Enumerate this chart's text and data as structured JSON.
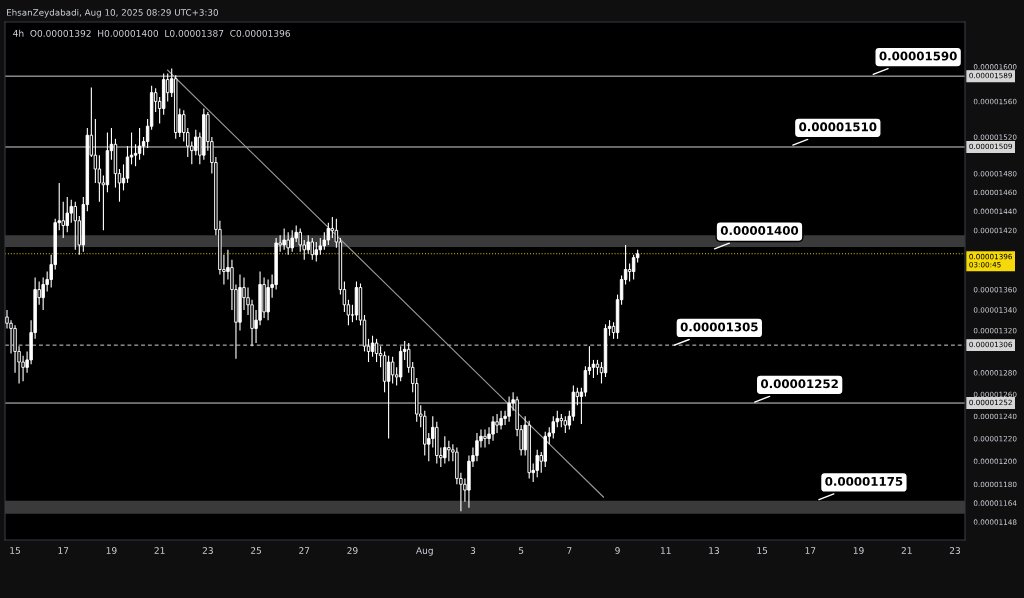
{
  "chart_data": {
    "type": "candlestick",
    "title": "4h  O0.00001392  H0.00001400  L0.00001387  C0.00001396",
    "annotations": [
      "EhsanZeydabadi, Aug 10, 2025 08:29 UTC+3:30",
      {
        "text": "0.00001590",
        "x": "2025-08-19T12:00",
        "y": 1.59e-05
      },
      {
        "text": "0.00001510",
        "x": "2025-08-16T04:00",
        "y": 1.51e-05
      },
      {
        "text": "0.00001400",
        "x": "2025-08-12T22:00",
        "y": 1.4e-05
      },
      {
        "text": "0.00001305",
        "x": "2025-08-11T06:00",
        "y": 1.305e-05
      },
      {
        "text": "0.00001252",
        "x": "2025-08-14T14:00",
        "y": 1.252e-05
      },
      {
        "text": "0.00001175",
        "x": "2025-08-17T06:00",
        "y": 1.166e-05
      }
    ],
    "log": true,
    "xlim": [
      "2025-07-14T14:00",
      "2025-08-23T10:00"
    ],
    "xticks": [
      {
        "value": "2025-07-15",
        "label": "15"
      },
      {
        "value": "2025-07-17",
        "label": "17"
      },
      {
        "value": "2025-07-19",
        "label": "19"
      },
      {
        "value": "2025-07-21",
        "label": "21"
      },
      {
        "value": "2025-07-23",
        "label": "23"
      },
      {
        "value": "2025-07-25",
        "label": "25"
      },
      {
        "value": "2025-07-27",
        "label": "27"
      },
      {
        "value": "2025-07-29",
        "label": "29"
      },
      {
        "value": "2025-08-01",
        "label": "Aug"
      },
      {
        "value": "2025-08-03",
        "label": "3"
      },
      {
        "value": "2025-08-05",
        "label": "5"
      },
      {
        "value": "2025-08-07",
        "label": "7"
      },
      {
        "value": "2025-08-09",
        "label": "9"
      },
      {
        "value": "2025-08-11",
        "label": "11"
      },
      {
        "value": "2025-08-13",
        "label": "13"
      },
      {
        "value": "2025-08-15",
        "label": "15"
      },
      {
        "value": "2025-08-17",
        "label": "17"
      },
      {
        "value": "2025-08-19",
        "label": "19"
      },
      {
        "value": "2025-08-21",
        "label": "21"
      },
      {
        "value": "2025-08-23",
        "label": "23"
      }
    ],
    "ylim": [
      1.133e-05,
      1.653e-05
    ],
    "yticks": [
      {
        "value": 1.6e-05,
        "label": "0.00001600"
      },
      {
        "value": 1.56e-05,
        "label": "0.00001560"
      },
      {
        "value": 1.52e-05,
        "label": "0.00001520"
      },
      {
        "value": 1.48e-05,
        "label": "0.00001480"
      },
      {
        "value": 1.46e-05,
        "label": "0.00001460"
      },
      {
        "value": 1.44e-05,
        "label": "0.00001440"
      },
      {
        "value": 1.42e-05,
        "label": "0.00001420"
      },
      {
        "value": 1.36e-05,
        "label": "0.00001360"
      },
      {
        "value": 1.34e-05,
        "label": "0.00001340"
      },
      {
        "value": 1.32e-05,
        "label": "0.00001320"
      },
      {
        "value": 1.28e-05,
        "label": "0.00001280"
      },
      {
        "value": 1.26e-05,
        "label": "0.00001260"
      },
      {
        "value": 1.24e-05,
        "label": "0.00001240"
      },
      {
        "value": 1.22e-05,
        "label": "0.00001220"
      },
      {
        "value": 1.2e-05,
        "label": "0.00001200"
      },
      {
        "value": 1.18e-05,
        "label": "0.00001180"
      },
      {
        "value": 1.164e-05,
        "label": "0.00001164"
      },
      {
        "value": 1.148e-05,
        "label": "0.00001148"
      }
    ],
    "ref_lines": [
      {
        "axis": "y",
        "value": 1.589e-05,
        "label": "0.00001589",
        "color": "#d6d6d6",
        "line_style": "solid"
      },
      {
        "axis": "y",
        "value": 1.509e-05,
        "label": "0.00001509",
        "color": "#d6d6d6",
        "line_style": "solid"
      },
      {
        "axis": "y",
        "value": 1.396e-05,
        "label": "0.00001396\n03:00:45",
        "color": "#f5d90a",
        "line_style": "dotted"
      },
      {
        "axis": "y",
        "value": 1.306e-05,
        "label": "0.00001306",
        "color": "#d6d6d6",
        "line_style": "dashed"
      },
      {
        "axis": "y",
        "value": 1.252e-05,
        "label": "0.00001252",
        "color": "#d6d6d6",
        "line_style": "solid"
      }
    ],
    "bands": [
      {
        "axis": "y",
        "from": 1.403e-05,
        "to": 1.415e-05,
        "color": "#3a3a3a"
      },
      {
        "axis": "y",
        "from": 1.155e-05,
        "to": 1.166e-05,
        "color": "#3a3a3a"
      }
    ],
    "grid": false,
    "legend": false,
    "series": [
      {
        "type": "candlestick",
        "color": "#ffffff",
        "x": [
          "2025-07-14T16:00",
          "2025-07-14T20:00",
          "2025-07-15T00:00",
          "2025-07-15T04:00",
          "2025-07-15T08:00",
          "2025-07-15T12:00",
          "2025-07-15T16:00",
          "2025-07-15T20:00",
          "2025-07-16T00:00",
          "2025-07-16T04:00",
          "2025-07-16T08:00",
          "2025-07-16T12:00",
          "2025-07-16T16:00",
          "2025-07-16T20:00",
          "2025-07-17T00:00",
          "2025-07-17T04:00",
          "2025-07-17T08:00",
          "2025-07-17T12:00",
          "2025-07-17T16:00",
          "2025-07-17T20:00",
          "2025-07-18T00:00",
          "2025-07-18T04:00",
          "2025-07-18T08:00",
          "2025-07-18T12:00",
          "2025-07-18T16:00",
          "2025-07-18T20:00",
          "2025-07-19T00:00",
          "2025-07-19T04:00",
          "2025-07-19T08:00",
          "2025-07-19T12:00",
          "2025-07-19T16:00",
          "2025-07-19T20:00",
          "2025-07-20T00:00",
          "2025-07-20T04:00",
          "2025-07-20T08:00",
          "2025-07-20T12:00",
          "2025-07-20T16:00",
          "2025-07-20T20:00",
          "2025-07-21T00:00",
          "2025-07-21T04:00",
          "2025-07-21T08:00",
          "2025-07-21T12:00",
          "2025-07-21T16:00",
          "2025-07-21T20:00",
          "2025-07-22T00:00",
          "2025-07-22T04:00",
          "2025-07-22T08:00",
          "2025-07-22T12:00",
          "2025-07-22T16:00",
          "2025-07-22T20:00",
          "2025-07-23T00:00",
          "2025-07-23T04:00",
          "2025-07-23T08:00",
          "2025-07-23T12:00",
          "2025-07-23T16:00",
          "2025-07-23T20:00",
          "2025-07-24T00:00",
          "2025-07-24T04:00",
          "2025-07-24T08:00",
          "2025-07-24T12:00",
          "2025-07-24T16:00",
          "2025-07-24T20:00",
          "2025-07-25T00:00",
          "2025-07-25T04:00",
          "2025-07-25T08:00",
          "2025-07-25T12:00",
          "2025-07-25T16:00",
          "2025-07-25T20:00",
          "2025-07-26T00:00",
          "2025-07-26T04:00",
          "2025-07-26T08:00",
          "2025-07-26T12:00",
          "2025-07-26T16:00",
          "2025-07-26T20:00",
          "2025-07-27T00:00",
          "2025-07-27T04:00",
          "2025-07-27T08:00",
          "2025-07-27T12:00",
          "2025-07-27T16:00",
          "2025-07-27T20:00",
          "2025-07-28T00:00",
          "2025-07-28T04:00",
          "2025-07-28T08:00",
          "2025-07-28T12:00",
          "2025-07-28T16:00",
          "2025-07-28T20:00",
          "2025-07-29T00:00",
          "2025-07-29T04:00",
          "2025-07-29T08:00",
          "2025-07-29T12:00",
          "2025-07-29T16:00",
          "2025-07-29T20:00",
          "2025-07-30T00:00",
          "2025-07-30T04:00",
          "2025-07-30T08:00",
          "2025-07-30T12:00",
          "2025-07-30T16:00",
          "2025-07-30T20:00",
          "2025-07-31T00:00",
          "2025-07-31T04:00",
          "2025-07-31T08:00",
          "2025-07-31T12:00",
          "2025-07-31T16:00",
          "2025-07-31T20:00",
          "2025-08-01T00:00",
          "2025-08-01T04:00",
          "2025-08-01T08:00",
          "2025-08-01T12:00",
          "2025-08-01T16:00",
          "2025-08-01T20:00",
          "2025-08-02T00:00",
          "2025-08-02T04:00",
          "2025-08-02T08:00",
          "2025-08-02T12:00",
          "2025-08-02T16:00",
          "2025-08-02T20:00",
          "2025-08-03T00:00",
          "2025-08-03T04:00",
          "2025-08-03T08:00",
          "2025-08-03T12:00",
          "2025-08-03T16:00",
          "2025-08-03T20:00",
          "2025-08-04T00:00",
          "2025-08-04T04:00",
          "2025-08-04T08:00",
          "2025-08-04T12:00",
          "2025-08-04T16:00",
          "2025-08-04T20:00",
          "2025-08-05T00:00",
          "2025-08-05T04:00",
          "2025-08-05T08:00",
          "2025-08-05T12:00",
          "2025-08-05T16:00",
          "2025-08-05T20:00",
          "2025-08-06T00:00",
          "2025-08-06T04:00",
          "2025-08-06T08:00",
          "2025-08-06T12:00",
          "2025-08-06T16:00",
          "2025-08-06T20:00",
          "2025-08-07T00:00",
          "2025-08-07T04:00",
          "2025-08-07T08:00",
          "2025-08-07T12:00",
          "2025-08-07T16:00",
          "2025-08-07T20:00",
          "2025-08-08T00:00",
          "2025-08-08T04:00",
          "2025-08-08T08:00",
          "2025-08-08T12:00",
          "2025-08-08T16:00",
          "2025-08-08T20:00",
          "2025-08-09T00:00",
          "2025-08-09T04:00",
          "2025-08-09T08:00",
          "2025-08-09T12:00",
          "2025-08-09T16:00",
          "2025-08-09T20:00"
        ],
        "ohlc": [
          [
            1.333e-05,
            1.34e-05,
            1.322e-05,
            1.327e-05
          ],
          [
            1.327e-05,
            1.33e-05,
            1.298e-05,
            1.322e-05
          ],
          [
            1.322e-05,
            1.325e-05,
            1.28e-05,
            1.3e-05
          ],
          [
            1.3e-05,
            1.305e-05,
            1.27e-05,
            1.29e-05
          ],
          [
            1.29e-05,
            1.296e-05,
            1.272e-05,
            1.285e-05
          ],
          [
            1.285e-05,
            1.3e-05,
            1.28e-05,
            1.292e-05
          ],
          [
            1.292e-05,
            1.33e-05,
            1.288e-05,
            1.318e-05
          ],
          [
            1.318e-05,
            1.372e-05,
            1.312e-05,
            1.36e-05
          ],
          [
            1.36e-05,
            1.368e-05,
            1.345e-05,
            1.352e-05
          ],
          [
            1.352e-05,
            1.372e-05,
            1.34e-05,
            1.365e-05
          ],
          [
            1.365e-05,
            1.378e-05,
            1.358e-05,
            1.37e-05
          ],
          [
            1.37e-05,
            1.395e-05,
            1.362e-05,
            1.385e-05
          ],
          [
            1.385e-05,
            1.432e-05,
            1.38e-05,
            1.428e-05
          ],
          [
            1.428e-05,
            1.47e-05,
            1.42e-05,
            1.43e-05
          ],
          [
            1.43e-05,
            1.45e-05,
            1.412e-05,
            1.425e-05
          ],
          [
            1.425e-05,
            1.455e-05,
            1.418e-05,
            1.438e-05
          ],
          [
            1.438e-05,
            1.452e-05,
            1.428e-05,
            1.445e-05
          ],
          [
            1.445e-05,
            1.45e-05,
            1.4e-05,
            1.43e-05
          ],
          [
            1.43e-05,
            1.435e-05,
            1.395e-05,
            1.405e-05
          ],
          [
            1.405e-05,
            1.455e-05,
            1.398e-05,
            1.447e-05
          ],
          [
            1.447e-05,
            1.53e-05,
            1.44e-05,
            1.522e-05
          ],
          [
            1.522e-05,
            1.576e-05,
            1.498e-05,
            1.5e-05
          ],
          [
            1.5e-05,
            1.54e-05,
            1.47e-05,
            1.485e-05
          ],
          [
            1.485e-05,
            1.5e-05,
            1.45e-05,
            1.47e-05
          ],
          [
            1.47e-05,
            1.478e-05,
            1.42e-05,
            1.468e-05
          ],
          [
            1.468e-05,
            1.525e-05,
            1.46e-05,
            1.505e-05
          ],
          [
            1.505e-05,
            1.53e-05,
            1.495e-05,
            1.512e-05
          ],
          [
            1.512e-05,
            1.518e-05,
            1.465e-05,
            1.48e-05
          ],
          [
            1.48e-05,
            1.485e-05,
            1.45e-05,
            1.47e-05
          ],
          [
            1.47e-05,
            1.49e-05,
            1.462e-05,
            1.475e-05
          ],
          [
            1.475e-05,
            1.51e-05,
            1.47e-05,
            1.498e-05
          ],
          [
            1.498e-05,
            1.525e-05,
            1.49e-05,
            1.5e-05
          ],
          [
            1.5e-05,
            1.512e-05,
            1.488e-05,
            1.502e-05
          ],
          [
            1.502e-05,
            1.53e-05,
            1.495e-05,
            1.51e-05
          ],
          [
            1.51e-05,
            1.52e-05,
            1.5e-05,
            1.515e-05
          ],
          [
            1.515e-05,
            1.54e-05,
            1.508e-05,
            1.532e-05
          ],
          [
            1.532e-05,
            1.578e-05,
            1.528e-05,
            1.57e-05
          ],
          [
            1.57e-05,
            1.575e-05,
            1.548e-05,
            1.56e-05
          ],
          [
            1.56e-05,
            1.565e-05,
            1.535e-05,
            1.552e-05
          ],
          [
            1.552e-05,
            1.592e-05,
            1.545e-05,
            1.585e-05
          ],
          [
            1.585e-05,
            1.592e-05,
            1.56e-05,
            1.57e-05
          ],
          [
            1.57e-05,
            1.598e-05,
            1.565e-05,
            1.586e-05
          ],
          [
            1.586e-05,
            1.59e-05,
            1.518e-05,
            1.525e-05
          ],
          [
            1.525e-05,
            1.552e-05,
            1.52e-05,
            1.545e-05
          ],
          [
            1.545e-05,
            1.55e-05,
            1.515e-05,
            1.525e-05
          ],
          [
            1.525e-05,
            1.53e-05,
            1.498e-05,
            1.51e-05
          ],
          [
            1.51e-05,
            1.515e-05,
            1.49e-05,
            1.505e-05
          ],
          [
            1.505e-05,
            1.528e-05,
            1.5e-05,
            1.52e-05
          ],
          [
            1.52e-05,
            1.525e-05,
            1.49e-05,
            1.5e-05
          ],
          [
            1.5e-05,
            1.552e-05,
            1.495e-05,
            1.545e-05
          ],
          [
            1.545e-05,
            1.548e-05,
            1.505e-05,
            1.515e-05
          ],
          [
            1.515e-05,
            1.52e-05,
            1.48e-05,
            1.492e-05
          ],
          [
            1.492e-05,
            1.498e-05,
            1.415e-05,
            1.421e-05
          ],
          [
            1.421e-05,
            1.43e-05,
            1.375e-05,
            1.38e-05
          ],
          [
            1.38e-05,
            1.395e-05,
            1.365e-05,
            1.378e-05
          ],
          [
            1.378e-05,
            1.4e-05,
            1.37e-05,
            1.382e-05
          ],
          [
            1.382e-05,
            1.39e-05,
            1.34e-05,
            1.36e-05
          ],
          [
            1.36e-05,
            1.365e-05,
            1.293e-05,
            1.328e-05
          ],
          [
            1.328e-05,
            1.375e-05,
            1.32e-05,
            1.362e-05
          ],
          [
            1.362e-05,
            1.372e-05,
            1.34e-05,
            1.352e-05
          ],
          [
            1.352e-05,
            1.362e-05,
            1.335e-05,
            1.345e-05
          ],
          [
            1.345e-05,
            1.35e-05,
            1.305e-05,
            1.322e-05
          ],
          [
            1.322e-05,
            1.34e-05,
            1.308e-05,
            1.33e-05
          ],
          [
            1.33e-05,
            1.378e-05,
            1.325e-05,
            1.365e-05
          ],
          [
            1.365e-05,
            1.372e-05,
            1.332e-05,
            1.338e-05
          ],
          [
            1.338e-05,
            1.37e-05,
            1.33e-05,
            1.362e-05
          ],
          [
            1.362e-05,
            1.375e-05,
            1.352e-05,
            1.365e-05
          ],
          [
            1.365e-05,
            1.412e-05,
            1.36e-05,
            1.407e-05
          ],
          [
            1.407e-05,
            1.415e-05,
            1.398e-05,
            1.405e-05
          ],
          [
            1.405e-05,
            1.422e-05,
            1.4e-05,
            1.41e-05
          ],
          [
            1.41e-05,
            1.418e-05,
            1.395e-05,
            1.402e-05
          ],
          [
            1.402e-05,
            1.42e-05,
            1.398e-05,
            1.412e-05
          ],
          [
            1.412e-05,
            1.425e-05,
            1.408e-05,
            1.418e-05
          ],
          [
            1.418e-05,
            1.422e-05,
            1.398e-05,
            1.405e-05
          ],
          [
            1.405e-05,
            1.41e-05,
            1.39e-05,
            1.4e-05
          ],
          [
            1.4e-05,
            1.415e-05,
            1.396e-05,
            1.408e-05
          ],
          [
            1.408e-05,
            1.412e-05,
            1.39e-05,
            1.395e-05
          ],
          [
            1.395e-05,
            1.408e-05,
            1.388e-05,
            1.4e-05
          ],
          [
            1.4e-05,
            1.412e-05,
            1.395e-05,
            1.404e-05
          ],
          [
            1.404e-05,
            1.418e-05,
            1.4e-05,
            1.41e-05
          ],
          [
            1.41e-05,
            1.428e-05,
            1.405e-05,
            1.422e-05
          ],
          [
            1.422e-05,
            1.434e-05,
            1.412e-05,
            1.42e-05
          ],
          [
            1.42e-05,
            1.432e-05,
            1.402e-05,
            1.408e-05
          ],
          [
            1.408e-05,
            1.412e-05,
            1.355e-05,
            1.36e-05
          ],
          [
            1.36e-05,
            1.368e-05,
            1.338e-05,
            1.345e-05
          ],
          [
            1.345e-05,
            1.35e-05,
            1.325e-05,
            1.335e-05
          ],
          [
            1.335e-05,
            1.345e-05,
            1.328e-05,
            1.335e-05
          ],
          [
            1.335e-05,
            1.368e-05,
            1.33e-05,
            1.362e-05
          ],
          [
            1.362e-05,
            1.366e-05,
            1.325e-05,
            1.33e-05
          ],
          [
            1.33e-05,
            1.335e-05,
            1.3e-05,
            1.305e-05
          ],
          [
            1.305e-05,
            1.312e-05,
            1.29e-05,
            1.3e-05
          ],
          [
            1.3e-05,
            1.315e-05,
            1.295e-05,
            1.308e-05
          ],
          [
            1.308e-05,
            1.312e-05,
            1.29e-05,
            1.298e-05
          ],
          [
            1.298e-05,
            1.305e-05,
            1.285e-05,
            1.296e-05
          ],
          [
            1.296e-05,
            1.3e-05,
            1.262e-05,
            1.272e-05
          ],
          [
            1.272e-05,
            1.296e-05,
            1.22e-05,
            1.29e-05
          ],
          [
            1.29e-05,
            1.295e-05,
            1.27e-05,
            1.278e-05
          ],
          [
            1.278e-05,
            1.285e-05,
            1.268e-05,
            1.276e-05
          ],
          [
            1.276e-05,
            1.305e-05,
            1.272e-05,
            1.3e-05
          ],
          [
            1.3e-05,
            1.31e-05,
            1.292e-05,
            1.302e-05
          ],
          [
            1.302e-05,
            1.308e-05,
            1.28e-05,
            1.285e-05
          ],
          [
            1.285e-05,
            1.29e-05,
            1.262e-05,
            1.27e-05
          ],
          [
            1.27e-05,
            1.275e-05,
            1.235e-05,
            1.242e-05
          ],
          [
            1.242e-05,
            1.25e-05,
            1.23e-05,
            1.24e-05
          ],
          [
            1.24e-05,
            1.245e-05,
            1.205e-05,
            1.215e-05
          ],
          [
            1.215e-05,
            1.225e-05,
            1.2e-05,
            1.22e-05
          ],
          [
            1.22e-05,
            1.24e-05,
            1.212e-05,
            1.23e-05
          ],
          [
            1.23e-05,
            1.235e-05,
            1.198e-05,
            1.205e-05
          ],
          [
            1.205e-05,
            1.212e-05,
            1.195e-05,
            1.203e-05
          ],
          [
            1.203e-05,
            1.222e-05,
            1.198e-05,
            1.212e-05
          ],
          [
            1.212e-05,
            1.218e-05,
            1.2e-05,
            1.21e-05
          ],
          [
            1.21e-05,
            1.215e-05,
            1.2e-05,
            1.208e-05
          ],
          [
            1.208e-05,
            1.212e-05,
            1.18e-05,
            1.185e-05
          ],
          [
            1.185e-05,
            1.19e-05,
            1.157e-05,
            1.18e-05
          ],
          [
            1.18e-05,
            1.185e-05,
            1.165e-05,
            1.175e-05
          ],
          [
            1.175e-05,
            1.205e-05,
            1.16e-05,
            1.2e-05
          ],
          [
            1.2e-05,
            1.212e-05,
            1.195e-05,
            1.205e-05
          ],
          [
            1.205e-05,
            1.225e-05,
            1.2e-05,
            1.218e-05
          ],
          [
            1.218e-05,
            1.228e-05,
            1.212e-05,
            1.222e-05
          ],
          [
            1.222e-05,
            1.228e-05,
            1.212e-05,
            1.22e-05
          ],
          [
            1.22e-05,
            1.23e-05,
            1.215e-05,
            1.224e-05
          ],
          [
            1.224e-05,
            1.24e-05,
            1.218e-05,
            1.235e-05
          ],
          [
            1.235e-05,
            1.242e-05,
            1.225e-05,
            1.232e-05
          ],
          [
            1.232e-05,
            1.245e-05,
            1.228e-05,
            1.238e-05
          ],
          [
            1.238e-05,
            1.245e-05,
            1.232e-05,
            1.24e-05
          ],
          [
            1.24e-05,
            1.258e-05,
            1.235e-05,
            1.252e-05
          ],
          [
            1.252e-05,
            1.262e-05,
            1.245e-05,
            1.255e-05
          ],
          [
            1.255e-05,
            1.258e-05,
            1.222e-05,
            1.228e-05
          ],
          [
            1.228e-05,
            1.232e-05,
            1.205e-05,
            1.21e-05
          ],
          [
            1.21e-05,
            1.24e-05,
            1.205e-05,
            1.232e-05
          ],
          [
            1.232e-05,
            1.236e-05,
            1.185e-05,
            1.19e-05
          ],
          [
            1.19e-05,
            1.198e-05,
            1.182e-05,
            1.192e-05
          ],
          [
            1.192e-05,
            1.21e-05,
            1.186e-05,
            1.205e-05
          ],
          [
            1.205e-05,
            1.208e-05,
            1.19e-05,
            1.2e-05
          ],
          [
            1.2e-05,
            1.226e-05,
            1.195e-05,
            1.222e-05
          ],
          [
            1.222e-05,
            1.23e-05,
            1.215e-05,
            1.225e-05
          ],
          [
            1.225e-05,
            1.24e-05,
            1.22e-05,
            1.235e-05
          ],
          [
            1.235e-05,
            1.245e-05,
            1.23e-05,
            1.238e-05
          ],
          [
            1.238e-05,
            1.242e-05,
            1.23e-05,
            1.236e-05
          ],
          [
            1.236e-05,
            1.24e-05,
            1.225e-05,
            1.232e-05
          ],
          [
            1.232e-05,
            1.245e-05,
            1.228e-05,
            1.24e-05
          ],
          [
            1.24e-05,
            1.268e-05,
            1.236e-05,
            1.262e-05
          ],
          [
            1.262e-05,
            1.266e-05,
            1.25e-05,
            1.258e-05
          ],
          [
            1.258e-05,
            1.266e-05,
            1.233e-05,
            1.262e-05
          ],
          [
            1.262e-05,
            1.286e-05,
            1.258e-05,
            1.282e-05
          ],
          [
            1.282e-05,
            1.305e-05,
            1.278e-05,
            1.285e-05
          ],
          [
            1.285e-05,
            1.292e-05,
            1.275e-05,
            1.288e-05
          ],
          [
            1.288e-05,
            1.292e-05,
            1.278e-05,
            1.285e-05
          ],
          [
            1.285e-05,
            1.29e-05,
            1.27e-05,
            1.28e-05
          ],
          [
            1.28e-05,
            1.326e-05,
            1.276e-05,
            1.322e-05
          ],
          [
            1.322e-05,
            1.33e-05,
            1.315e-05,
            1.324e-05
          ],
          [
            1.324e-05,
            1.328e-05,
            1.312e-05,
            1.318e-05
          ],
          [
            1.318e-05,
            1.355e-05,
            1.312e-05,
            1.35e-05
          ],
          [
            1.35e-05,
            1.374e-05,
            1.345e-05,
            1.37e-05
          ],
          [
            1.37e-05,
            1.405e-05,
            1.365e-05,
            1.38e-05
          ],
          [
            1.38e-05,
            1.386e-05,
            1.368e-05,
            1.378e-05
          ],
          [
            1.378e-05,
            1.395e-05,
            1.37e-05,
            1.392e-05
          ],
          [
            1.392e-05,
            1.4e-05,
            1.387e-05,
            1.396e-05
          ]
        ]
      },
      {
        "type": "line",
        "color": "#9a9a9a",
        "x": [
          "2025-07-21T08:00",
          "2025-08-08T10:00"
        ],
        "values": [
          1.596e-05,
          1.169e-05
        ]
      }
    ]
  }
}
